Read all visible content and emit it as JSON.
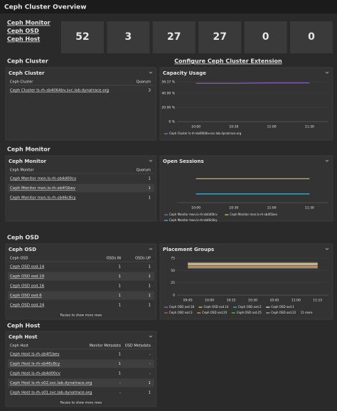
{
  "header": {
    "title": "Ceph Cluster Overview"
  },
  "nav": [
    "Ceph Monitor",
    "Ceph OSD",
    "Ceph Host"
  ],
  "tiles": [
    52,
    3,
    27,
    27,
    0,
    0
  ],
  "sections": [
    {
      "title": "Ceph Cluster",
      "link": "Configure Ceph Cluster Extension",
      "table": {
        "title": "Ceph Cluster",
        "columns": [
          "Ceph Cluster",
          "Quorum"
        ],
        "rows": [
          [
            "Ceph Cluster ls-rh-sb4064bv.svc.lab.dynatrace.org",
            3
          ]
        ]
      },
      "chart": {
        "type": "line",
        "title": "Capacity Usage",
        "categories": [
          "10:00",
          "10:30",
          "11:00",
          "11:30"
        ],
        "ylim": [
          0,
          56.17
        ],
        "yticks": [
          {
            "value": 56.17,
            "label": "56.17 %"
          },
          {
            "value": 40,
            "label": "40.00 %"
          },
          {
            "value": 20,
            "label": "20.00 %"
          },
          {
            "value": 0,
            "label": "0 %"
          }
        ],
        "series": [
          {
            "name": "Ceph Cluster ls-rh-sb4064bv.svc.lab.dynatrace.org",
            "color": "#9b6bd6",
            "values": [
              54,
              54,
              54.5,
              54.5
            ]
          }
        ]
      }
    },
    {
      "title": "Ceph Monitor",
      "table": {
        "title": "Ceph Monitor",
        "columns": [
          "Ceph Monitor",
          "Quorum"
        ],
        "rows": [
          [
            "Ceph Monitor mon.ls-rh-sb4d00cv",
            1
          ],
          [
            "Ceph Monitor mon.ls-rh-sb4f1bev",
            1
          ],
          [
            "Ceph Monitor mon.ls-rh-sb46c8cy",
            1
          ]
        ]
      },
      "chart": {
        "type": "line",
        "title": "Open Sessions",
        "categories": [
          "10:00",
          "10:30",
          "11:00",
          "11:30"
        ],
        "ylim": [
          0,
          30
        ],
        "series": [
          {
            "name": "Ceph Monitor mon.ls-rh-sb4d00cv",
            "color": "#9b6bd6",
            "values": [
              8,
              8,
              8,
              8
            ]
          },
          {
            "name": "Ceph Monitor mon.ls-rh-sb4f1bev",
            "color": "#e8d55a",
            "values": [
              22,
              22,
              22,
              22
            ]
          },
          {
            "name": "Ceph Monitor mon.ls-rh-sb46c8cy",
            "color": "#3fc1d6",
            "values": [
              8,
              8,
              8,
              8
            ]
          }
        ]
      }
    },
    {
      "title": "Ceph OSD",
      "table": {
        "title": "Ceph OSD",
        "columns": [
          "Ceph OSD",
          "OSDs IN",
          "OSDs UP"
        ],
        "rows": [
          [
            "Ceph OSD osd.14",
            1,
            1
          ],
          [
            "Ceph OSD osd.19",
            1,
            1
          ],
          [
            "Ceph OSD osd.16",
            1,
            1
          ],
          [
            "Ceph OSD osd.6",
            1,
            1
          ],
          [
            "Ceph OSD osd.24",
            1,
            1
          ]
        ],
        "footer": "Resize to show more rows"
      },
      "chart": {
        "type": "line",
        "title": "Placement Groups",
        "categories": [
          "09:45",
          "10:00",
          "10:15",
          "10:30",
          "10:45",
          "11:00",
          "11:15"
        ],
        "ylim": [
          0,
          75
        ],
        "yticks": [
          75,
          50,
          25,
          0
        ],
        "series": [
          {
            "name": "Ceph OSD osd.18",
            "color": "#9b6bd6",
            "values": [
              66,
              66,
              66,
              66,
              66,
              66,
              66
            ]
          },
          {
            "name": "Ceph OSD osd.14",
            "color": "#e8d55a",
            "values": [
              64,
              64,
              64,
              64,
              64,
              64,
              64
            ]
          },
          {
            "name": "Ceph OSD osd.2",
            "color": "#3fc1d6",
            "values": [
              63,
              63,
              63,
              63,
              63,
              63,
              63
            ]
          },
          {
            "name": "Ceph OSD osd.1",
            "color": "#f2f2f2",
            "values": [
              62,
              62,
              62,
              62,
              62,
              62,
              62
            ]
          },
          {
            "name": "Ceph OSD osd.3",
            "color": "#e2574c",
            "values": [
              60,
              60,
              60,
              60,
              60,
              60,
              60
            ]
          },
          {
            "name": "Ceph OSD osd.20",
            "color": "#f0a04b",
            "values": [
              58,
              58,
              58,
              58,
              58,
              58,
              58
            ]
          },
          {
            "name": "Ceph OSD osd.25",
            "color": "#7dc540",
            "values": [
              57,
              57,
              57,
              57,
              57,
              57,
              57
            ]
          },
          {
            "name": "Ceph OSD osd.22",
            "color": "#b6b6b6",
            "values": [
              55,
              55,
              55,
              55,
              55,
              55,
              55
            ]
          }
        ],
        "legend_more": "11 more"
      }
    },
    {
      "title": "Ceph Host",
      "table": {
        "title": "Ceph Host",
        "columns": [
          "Ceph Host",
          "Monitor Metadata",
          "OSD Metadata"
        ],
        "rows": [
          [
            "Ceph Host ls-rh-sb4f1bev",
            1,
            "-"
          ],
          [
            "Ceph Host ls-rh-sb46c8cy",
            1,
            "-"
          ],
          [
            "Ceph Host ls-rh-sb4d00cv",
            1,
            "-"
          ],
          [
            "Ceph Host ls-rh-s02.svc.lab.dynatrace.org",
            "-",
            1
          ],
          [
            "Ceph Host ls-rh-s01.svc.lab.dynatrace.org",
            "-",
            1
          ]
        ],
        "footer": "Resize to show more rows"
      }
    }
  ]
}
